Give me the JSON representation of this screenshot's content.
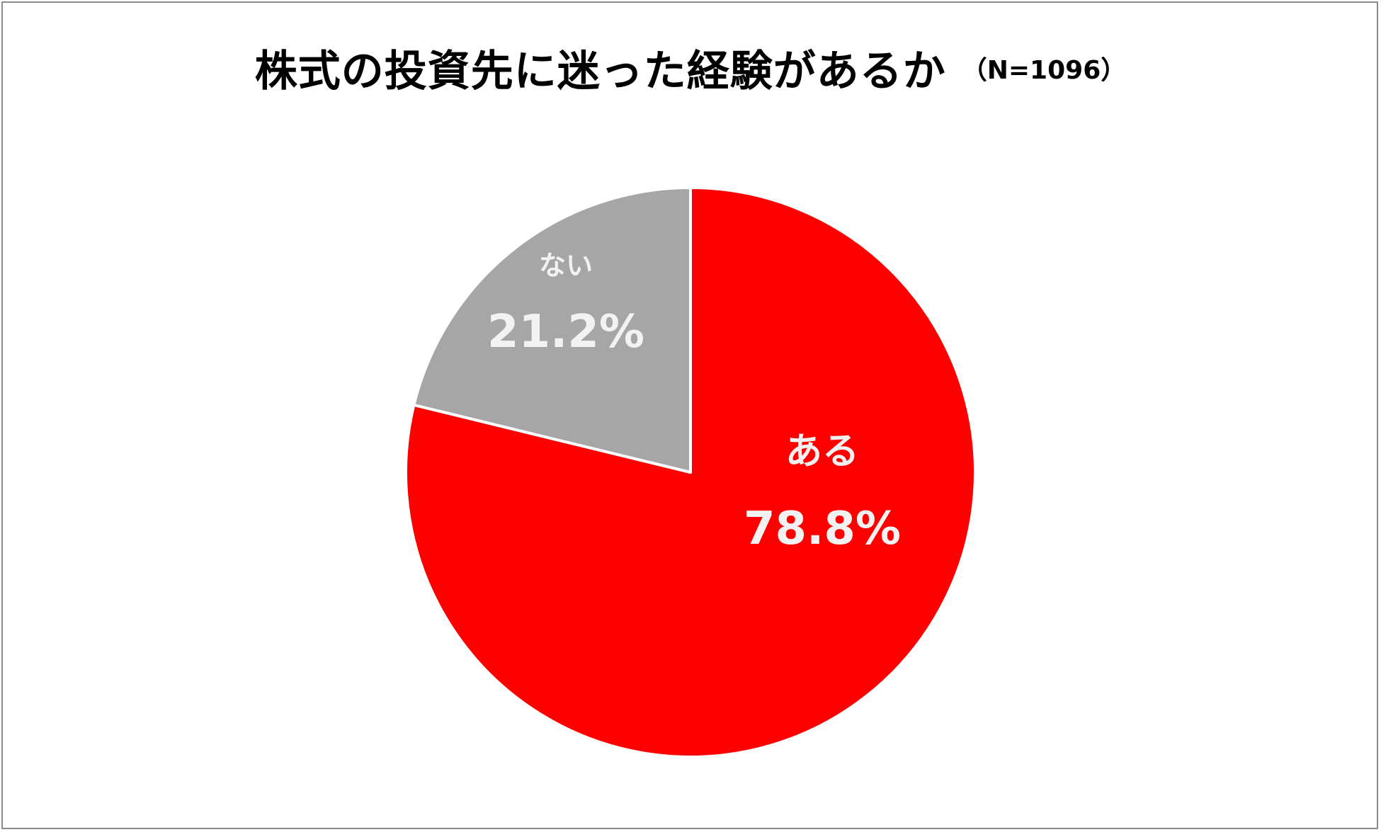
{
  "chart_data": {
    "type": "pie",
    "title": "株式の投資先に迷った経験があるか",
    "subtitle": "（N=1096）",
    "slices": [
      {
        "label": "ある",
        "value": 78.8,
        "value_label": "78.8%",
        "color": "#ff0000"
      },
      {
        "label": "ない",
        "value": 21.2,
        "value_label": "21.2%",
        "color": "#a6a6a6"
      }
    ],
    "start": "12 o'clock",
    "direction": "clockwise",
    "slice_border_color": "#ffffff",
    "legend": "none"
  }
}
